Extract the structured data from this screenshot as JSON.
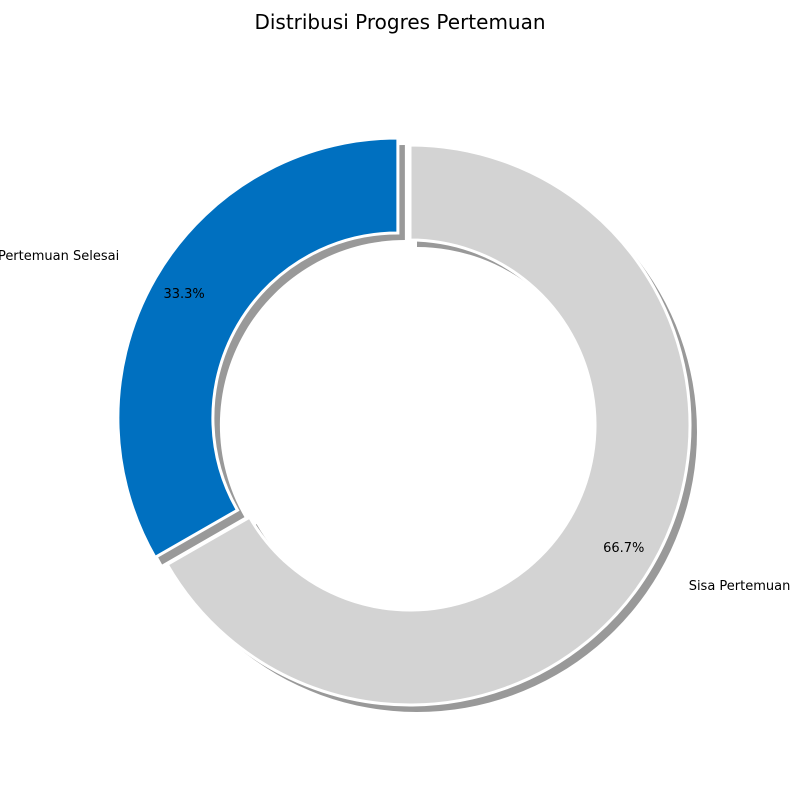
{
  "chart_data": {
    "type": "pie",
    "donut": true,
    "title": "Distribusi Progres Pertemuan",
    "start_angle_deg": 90,
    "direction": "counterclockwise",
    "shadow": true,
    "slices": [
      {
        "label": "Pertemuan Selesai",
        "value": 33.3,
        "pct_label": "33.3%",
        "color": "#0070c0",
        "exploded": true
      },
      {
        "label": "Sisa Pertemuan",
        "value": 66.7,
        "pct_label": "66.7%",
        "color": "#d3d3d3",
        "exploded": false
      }
    ]
  }
}
